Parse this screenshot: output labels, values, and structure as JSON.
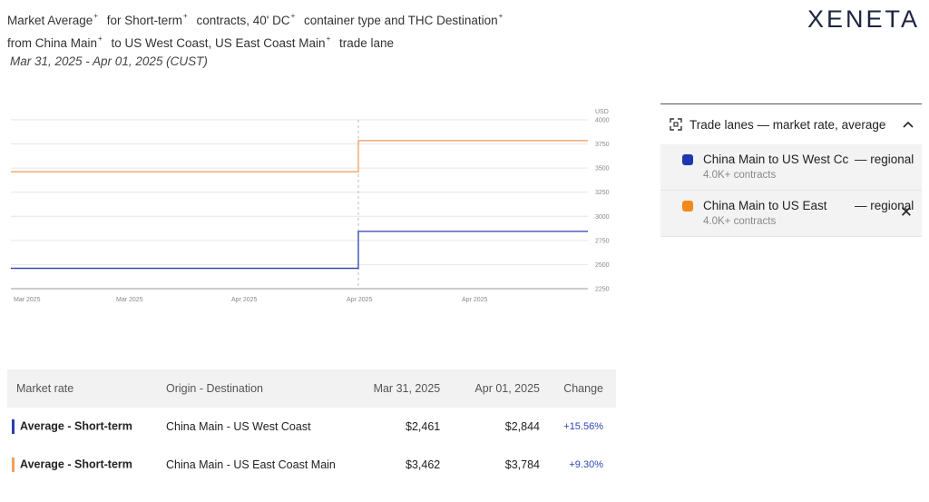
{
  "header": {
    "line1_parts": [
      "Market Average",
      "for Short-term",
      "contracts, 40' DC",
      "container type and THC Destination"
    ],
    "line2_parts": [
      "from China Main",
      "to US West Coast, US East Coast Main",
      "trade lane"
    ],
    "plus": "+",
    "date_range": "Mar 31, 2025 - Apr 01, 2025 (CUST)"
  },
  "logo": "XENETA",
  "chart_data": {
    "type": "line",
    "y_unit": "USD",
    "ylim": [
      2250,
      4000
    ],
    "y_ticks": [
      4000,
      3750,
      3500,
      3250,
      3000,
      2750,
      2500,
      2250
    ],
    "x_tick_labels": [
      "Mar 2025",
      "Mar 2025",
      "Apr 2025",
      "Apr 2025",
      "Apr 2025"
    ],
    "x_categories": [
      "Mar 31, 2025",
      "Apr 01, 2025"
    ],
    "series": [
      {
        "name": "China Main to US West Coast — regional",
        "color": "#2b3fb0",
        "values": [
          2461,
          2844
        ]
      },
      {
        "name": "China Main to US East Coast Main — regional",
        "color": "#f0a060",
        "values": [
          3462,
          3784
        ]
      }
    ],
    "grid": true
  },
  "panel": {
    "title": "Trade lanes — market rate, average",
    "lanes": [
      {
        "name": "China Main to US West Cc",
        "suffix": "— regional",
        "contracts": "4.0K+ contracts",
        "color": "#1f38b0"
      },
      {
        "name": "China Main to US East",
        "suffix": "— regional",
        "contracts": "4.0K+ contracts",
        "color": "#f28a1a"
      }
    ]
  },
  "table": {
    "headers": [
      "Market rate",
      "Origin - Destination",
      "Mar 31, 2025",
      "Apr 01, 2025",
      "Change"
    ],
    "rows": [
      {
        "rate": "Average - Short-term",
        "od": "China Main - US West Coast",
        "d1": "$2,461",
        "d2": "$2,844",
        "change": "+15.56%",
        "color": "#2b3fb0"
      },
      {
        "rate": "Average - Short-term",
        "od": "China Main - US East Coast Main",
        "d1": "$3,462",
        "d2": "$3,784",
        "change": "+9.30%",
        "color": "#f0a060"
      }
    ]
  }
}
